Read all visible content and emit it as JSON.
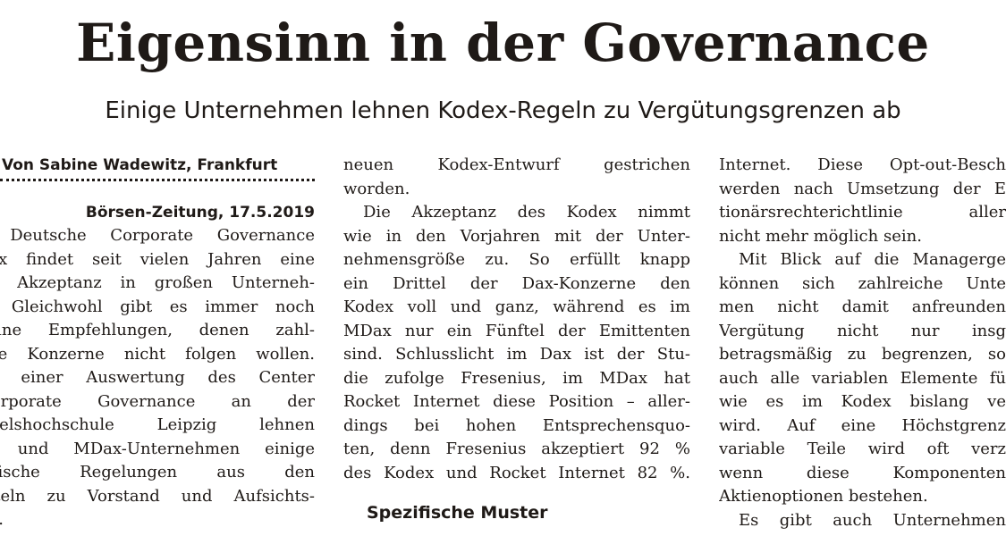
{
  "article": {
    "headline": "Eigensinn in der Governance",
    "subheadline": "Einige Unternehmen lehnen Kodex-Regeln zu Vergütungsgrenzen ab",
    "byline": "Von Sabine Wadewitz, Frankfurt",
    "dateline": "Börsen-Zeitung, 17.5.2019",
    "columns": [
      {
        "lines": [
          "r Deutsche Corporate Governance",
          "dex findet seit vielen Jahren eine",
          "he Akzeptanz in großen Unterneh-",
          "n. Gleichwohl gibt es immer noch",
          "zelne Empfehlungen, denen zahl-",
          "che Konzerne nicht folgen wollen.",
          "ch einer Auswertung des Center",
          "Corporate Governance an der",
          "ndelshochschule Leipzig lehnen",
          "x- und MDax-Unternehmen einige",
          "zifische Regelungen aus den",
          "biteln zu Vorstand und Aufsichts-",
          "ab."
        ]
      },
      {
        "lines": [
          "neuen Kodex-Entwurf gestrichen",
          "worden.",
          "Die Akzeptanz des Kodex nimmt",
          "wie in den Vorjahren mit der Unter-",
          "nehmensgröße zu. So erfüllt knapp",
          "ein Drittel der Dax-Konzerne den",
          "Kodex voll und ganz, während es im",
          "MDax nur ein Fünftel der Emittenten",
          "sind. Schlusslicht im Dax ist der Stu-",
          "die zufolge Fresenius, im MDax hat",
          "Rocket Internet diese Position – aller-",
          "dings bei hohen Entsprechensquo-",
          "ten, denn Fresenius akzeptiert 92 %",
          "des Kodex und Rocket Internet 82 %."
        ],
        "section_heading": "Spezifische Muster"
      },
      {
        "lines": [
          "Internet. Diese Opt-out-Besch",
          "werden nach Umsetzung der E",
          "tionärsrechterichtlinie aller",
          "nicht mehr möglich sein.",
          "Mit Blick auf die Managerge",
          "können sich zahlreiche Unte",
          "men nicht damit anfreunden",
          "Vergütung nicht nur insg",
          "betragsmäßig zu begrenzen, so",
          "auch alle variablen Elemente fü",
          "wie es im Kodex bislang ve",
          "wird. Auf eine Höchstgrenz",
          "variable Teile wird oft verz",
          "wenn diese Komponenten",
          "Aktienoptionen bestehen.",
          "Es gibt auch Unternehmen"
        ]
      }
    ]
  }
}
